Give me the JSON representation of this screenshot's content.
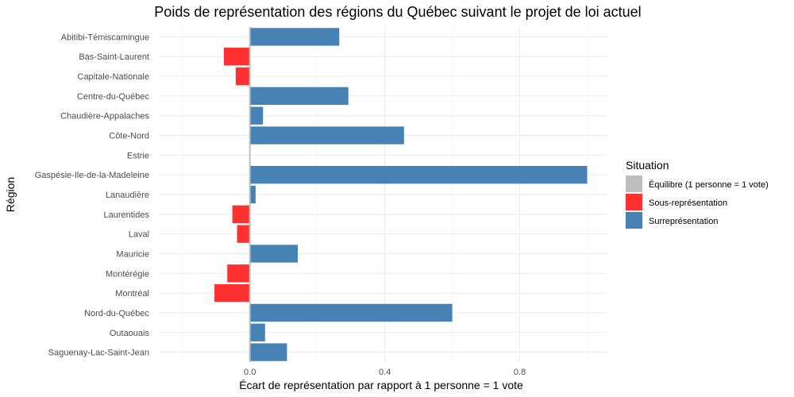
{
  "chart_data": {
    "type": "bar",
    "orientation": "horizontal",
    "title": "Poids de représentation des régions du Québec suivant le projet de loi actuel",
    "xlabel": "Écart de représentation par rapport à 1 personne = 1 vote",
    "ylabel": "Région",
    "xlim": [
      -0.27,
      1.06
    ],
    "xticks": [
      0.0,
      0.4,
      0.8
    ],
    "xtick_labels": [
      "0.0",
      "0.4",
      "0.8"
    ],
    "grid": true,
    "categories": [
      "Abitibi-Témiscamingue",
      "Bas-Saint-Laurent",
      "Capitale-Nationale",
      "Centre-du-Québec",
      "Chaudière-Appalaches",
      "Côte-Nord",
      "Estrie",
      "Gaspésie-Ile-de-la-Madeleine",
      "Lanaudière",
      "Laurentides",
      "Laval",
      "Mauricie",
      "Montérégie",
      "Montréal",
      "Nord-du-Québec",
      "Outaouais",
      "Saguenay-Lac-Saint-Jean"
    ],
    "values": [
      0.265,
      -0.077,
      -0.042,
      0.292,
      0.039,
      0.457,
      0.0,
      1.0,
      0.017,
      -0.052,
      -0.038,
      0.142,
      -0.067,
      -0.105,
      0.6,
      0.045,
      0.11
    ],
    "situation": [
      "Surreprésentation",
      "Sous-représentation",
      "Sous-représentation",
      "Surreprésentation",
      "Surreprésentation",
      "Surreprésentation",
      "Équilibre (1 personne = 1 vote)",
      "Surreprésentation",
      "Surreprésentation",
      "Sous-représentation",
      "Sous-représentation",
      "Surreprésentation",
      "Sous-représentation",
      "Sous-représentation",
      "Surreprésentation",
      "Surreprésentation",
      "Surreprésentation"
    ],
    "legend": {
      "title": "Situation",
      "placement": "right",
      "entries": [
        {
          "label": "Équilibre (1 personne = 1 vote)",
          "color": "#bebebe"
        },
        {
          "label": "Sous-représentation",
          "color": "#ff3030"
        },
        {
          "label": "Surreprésentation",
          "color": "#4682b4"
        }
      ]
    }
  }
}
